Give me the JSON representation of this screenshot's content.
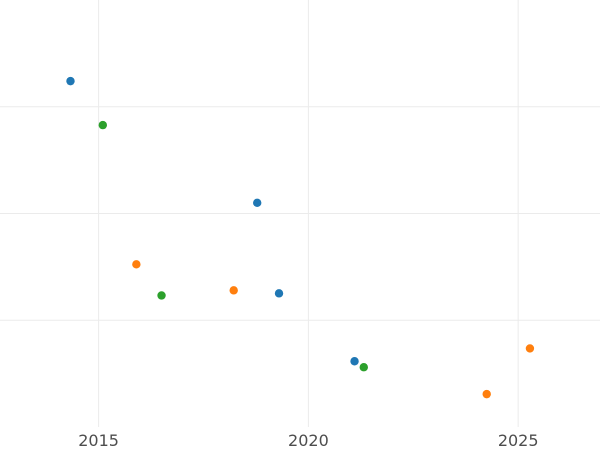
{
  "chart_data": {
    "type": "scatter",
    "title": "",
    "xlabel": "",
    "ylabel": "",
    "xlim": [
      2012.65,
      2026.95
    ],
    "ylim": [
      0,
      100
    ],
    "x_ticks": [
      2015,
      2020,
      2025
    ],
    "x_tick_labels": [
      "2015",
      "2020",
      "2025"
    ],
    "y_gridlines": [
      25,
      50,
      75
    ],
    "grid": true,
    "legend": "none",
    "series": [
      {
        "color": "#1f77b4",
        "points": [
          [
            2014.33,
            81
          ],
          [
            2018.78,
            52.5
          ],
          [
            2019.3,
            31.3
          ],
          [
            2021.1,
            15.4
          ]
        ]
      },
      {
        "color": "#2ca02c",
        "points": [
          [
            2015.1,
            70.7
          ],
          [
            2016.5,
            30.8
          ],
          [
            2021.32,
            14.0
          ]
        ]
      },
      {
        "color": "#ff7f0e",
        "points": [
          [
            2015.9,
            38.1
          ],
          [
            2018.22,
            32.0
          ],
          [
            2024.25,
            7.7
          ],
          [
            2025.28,
            18.4
          ]
        ]
      }
    ]
  }
}
